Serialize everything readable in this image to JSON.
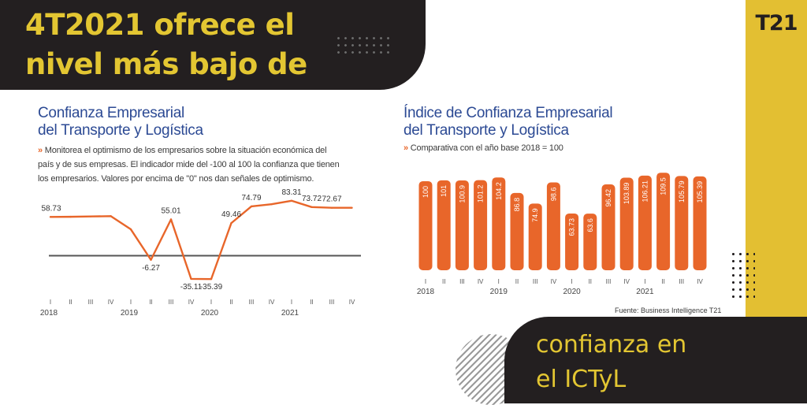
{
  "headline": {
    "line1": "4T2021 ofrece el",
    "line2": "nivel más bajo de"
  },
  "footer": {
    "line1": "confianza en",
    "line2": "el ICTyL"
  },
  "logo": "T21",
  "source": "Fuente: Business Intelligence T21",
  "colors": {
    "accent": "#e3c632",
    "dark": "#231f20",
    "series": "#e8662a",
    "title": "#2c4a94"
  },
  "chart_data": [
    {
      "type": "line",
      "title": "Confianza Empresarial del Transporte y Logística",
      "title_lines": [
        "Confianza Empresarial",
        "del Transporte y Logística"
      ],
      "description_arrow": "»",
      "description_lines": [
        "Monitorea el optimismo de los empresarios sobre la situación económica del",
        "país y de sus empresas. El indicador mide del -100 al 100 la confianza que tienen",
        "los empresarios. Valores por encima de \"0\" nos dan señales de optimismo."
      ],
      "quarters": [
        "I",
        "II",
        "III",
        "IV",
        "I",
        "II",
        "III",
        "IV",
        "I",
        "II",
        "III",
        "IV",
        "I",
        "II",
        "III",
        "IV"
      ],
      "years": [
        "2018",
        "2019",
        "2020",
        "2021"
      ],
      "values": [
        58.73,
        59,
        59.5,
        60,
        40,
        -6.27,
        55.01,
        -35.11,
        -35.39,
        49.46,
        74.79,
        78,
        83.31,
        73.72,
        72.67,
        72.67
      ],
      "labels": [
        "58.73",
        "",
        "",
        "",
        "",
        "-6.27",
        "55.01",
        "-35.11",
        "-35.39",
        "49.46",
        "74.79",
        "",
        "83.31",
        "73.72",
        "72.67",
        ""
      ],
      "ylim": [
        -40,
        95
      ]
    },
    {
      "type": "bar",
      "title": "Índice de Confianza Empresarial del Transporte y Logística",
      "title_lines": [
        "Índice de Confianza Empresarial",
        "del Transporte y Logística"
      ],
      "subtitle_arrow": "»",
      "subtitle": "Comparativa con el año base 2018 = 100",
      "quarters": [
        "I",
        "II",
        "III",
        "IV",
        "I",
        "II",
        "III",
        "IV",
        "I",
        "II",
        "III",
        "IV",
        "I",
        "II",
        "III",
        "IV"
      ],
      "years": [
        "2018",
        "2019",
        "2020",
        "2021"
      ],
      "values": [
        100,
        101,
        100.9,
        101.2,
        104.2,
        86.8,
        74.9,
        98.6,
        63.73,
        63.6,
        96.42,
        103.89,
        106.21,
        109.5,
        105.79,
        105.39
      ],
      "labels": [
        "100",
        "101",
        "100.9",
        "101.2",
        "104.2",
        "86.8",
        "74.9",
        "98.6",
        "63.73",
        "63.6",
        "96.42",
        "103.89",
        "106.21",
        "109.5",
        "105.79",
        "105.39"
      ],
      "ylim": [
        0,
        115
      ]
    }
  ]
}
